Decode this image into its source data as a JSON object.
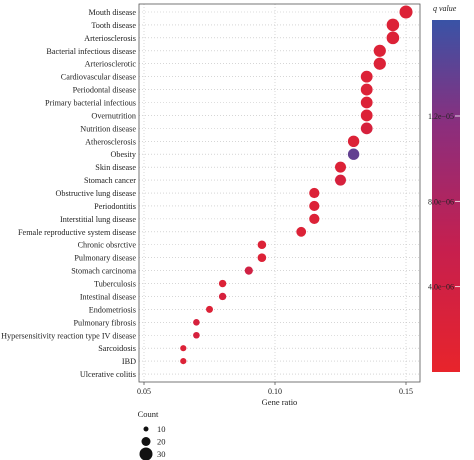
{
  "chart_data": {
    "type": "scatter",
    "title": "",
    "xlabel": "Gene ratio",
    "ylabel": "",
    "xlim": [
      0.05,
      0.155
    ],
    "xticks": [
      "0.05",
      "0.10",
      "0.15"
    ],
    "grid": "dotted",
    "categories": [
      "Mouth disease",
      "Tooth disease",
      "Arteriosclerosis",
      "Bacterial infectious disease",
      "Arteriosclerotic",
      "Cardiovascular disease",
      "Periodontal disease",
      "Primary bacterial infectious",
      "Overnutrition",
      "Nutrition disease",
      "Atherosclerosis",
      "Obesity",
      "Skin disease",
      "Stomach cancer",
      "Obstructive lung disease",
      "Periodontitis",
      "Interstitial lung disease",
      "Female reproductive system disease",
      "Chronic obsrctive",
      "Pulmonary disease",
      "Stomach carcinoma",
      "Tuberculosis",
      "Intestinal disease",
      "Endometriosis",
      "Pulmonary fibrosis",
      "Hypersensitivity reaction type IV disease",
      "Sarcoidosis",
      "IBD",
      "Ulcerative colitis"
    ],
    "points": [
      {
        "category": "Mouth disease",
        "x": 0.15,
        "count": 30,
        "q": 2e-06
      },
      {
        "category": "Tooth disease",
        "x": 0.145,
        "count": 29,
        "q": 2e-06
      },
      {
        "category": "Arteriosclerosis",
        "x": 0.145,
        "count": 29,
        "q": 2e-06
      },
      {
        "category": "Bacterial infectious disease",
        "x": 0.14,
        "count": 28,
        "q": 2e-06
      },
      {
        "category": "Arteriosclerotic",
        "x": 0.14,
        "count": 28,
        "q": 2e-06
      },
      {
        "category": "Cardiovascular disease",
        "x": 0.135,
        "count": 27,
        "q": 2e-06
      },
      {
        "category": "Periodontal disease",
        "x": 0.135,
        "count": 27,
        "q": 2e-06
      },
      {
        "category": "Primary bacterial infectious",
        "x": 0.135,
        "count": 27,
        "q": 2e-06
      },
      {
        "category": "Overnutrition",
        "x": 0.135,
        "count": 27,
        "q": 2e-06
      },
      {
        "category": "Nutrition disease",
        "x": 0.135,
        "count": 27,
        "q": 3e-06
      },
      {
        "category": "Atherosclerosis",
        "x": 0.13,
        "count": 26,
        "q": 2e-06
      },
      {
        "category": "Obesity",
        "x": 0.13,
        "count": 26,
        "q": 1.4e-05
      },
      {
        "category": "Skin disease",
        "x": 0.125,
        "count": 25,
        "q": 2e-06
      },
      {
        "category": "Stomach cancer",
        "x": 0.125,
        "count": 25,
        "q": 3e-06
      },
      {
        "category": "Obstructive lung disease",
        "x": 0.115,
        "count": 23,
        "q": 2e-06
      },
      {
        "category": "Periodontitis",
        "x": 0.115,
        "count": 23,
        "q": 2e-06
      },
      {
        "category": "Interstitial lung disease",
        "x": 0.115,
        "count": 23,
        "q": 2e-06
      },
      {
        "category": "Female reproductive system disease",
        "x": 0.11,
        "count": 22,
        "q": 2e-06
      },
      {
        "category": "Chronic obsrctive",
        "x": 0.095,
        "count": 19,
        "q": 2e-06
      },
      {
        "category": "Pulmonary disease",
        "x": 0.095,
        "count": 19,
        "q": 2e-06
      },
      {
        "category": "Stomach carcinoma",
        "x": 0.09,
        "count": 18,
        "q": 4e-06
      },
      {
        "category": "Tuberculosis",
        "x": 0.08,
        "count": 16,
        "q": 2e-06
      },
      {
        "category": "Intestinal disease",
        "x": 0.08,
        "count": 16,
        "q": 3e-06
      },
      {
        "category": "Endometriosis",
        "x": 0.075,
        "count": 15,
        "q": 2e-06
      },
      {
        "category": "Pulmonary fibrosis",
        "x": 0.07,
        "count": 14,
        "q": 3e-06
      },
      {
        "category": "Hypersensitivity reaction type IV disease",
        "x": 0.07,
        "count": 14,
        "q": 3e-06
      },
      {
        "category": "Sarcoidosis",
        "x": 0.065,
        "count": 13,
        "q": 2e-06
      },
      {
        "category": "IBD",
        "x": 0.065,
        "count": 13,
        "q": 2e-06
      },
      {
        "category": "Ulcerative colitis",
        "x": null,
        "count": null,
        "q": null
      }
    ],
    "colorbar": {
      "title": "q value",
      "ticks": [
        "1.2e−05",
        "8.0e−06",
        "4.0e−06"
      ],
      "tick_values": [
        1.2e-05,
        8e-06,
        4e-06
      ],
      "range": [
        0.0,
        1.65e-05
      ],
      "colors": [
        "#e8242b",
        "#3953a6"
      ]
    },
    "size_legend": {
      "title": "Count",
      "values": [
        10,
        20,
        30
      ],
      "labels": [
        "10",
        "20",
        "30"
      ]
    }
  }
}
